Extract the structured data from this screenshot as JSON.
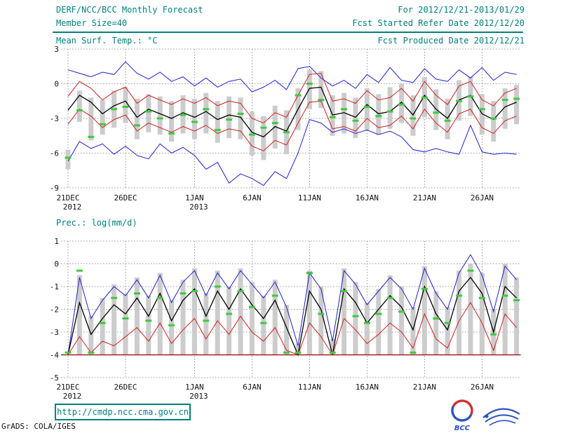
{
  "header": {
    "title": "DERF/NCC/BCC Monthly Forecast",
    "member_size": "Member Size=40",
    "valid_range": "For 2012/12/21-2013/01/29",
    "fcst_started": "Fcst Started Refer Date 2012/12/20",
    "fcst_produced": "Fcst Produced Date 2012/12/21"
  },
  "footer": {
    "url": "http://cmdp.ncc.cma.gov.cn",
    "credit": "GrADS: COLA/IGES",
    "bcc_logo_label": "BCC"
  },
  "colors": {
    "teal_text": "#008080",
    "line_blue": "#2020d0",
    "line_red": "#d02020",
    "line_black": "#000000",
    "obs_green": "#3fc93f",
    "bar_gray": "#cccccc",
    "dry_floor_red": "#990000"
  },
  "chart_data": [
    {
      "type": "line",
      "title": "Mean Surf. Temp.: °C",
      "xlabel": "",
      "ylabel": "°C",
      "ylim": [
        -9,
        3
      ],
      "yticks": [
        3,
        0,
        -3,
        -6,
        -9
      ],
      "grid": "dotted",
      "n_days": 40,
      "x_range": [
        "21DEC2012",
        "29JAN2013"
      ],
      "xtick_days": [
        0,
        5,
        11,
        16,
        21,
        26,
        31,
        36
      ],
      "xtick_labels": [
        "21DEC",
        "26DEC",
        "1JAN",
        "6JAN",
        "11JAN",
        "16JAN",
        "21JAN",
        "26JAN"
      ],
      "xtick_sublabels": [
        "2012",
        "",
        "2013",
        "",
        "",
        "",
        "",
        ""
      ],
      "series": [
        {
          "name": "ensemble-max",
          "color": "#2020d0",
          "width": 1,
          "values": [
            1.2,
            0.9,
            0.6,
            1.0,
            0.8,
            1.9,
            0.9,
            0.4,
            1.0,
            0.2,
            0.6,
            -0.2,
            0.5,
            -0.3,
            0.2,
            0.4,
            -0.7,
            -0.3,
            0.3,
            -0.5,
            1.3,
            1.5,
            0.5,
            -0.2,
            0.3,
            -0.4,
            0.8,
            0.1,
            1.4,
            0.3,
            0.1,
            1.3,
            0.4,
            0.2,
            1.2,
            0.5,
            1.4,
            0.3,
            1.0,
            0.8
          ]
        },
        {
          "name": "mean-plus-spread",
          "color": "#d02020",
          "width": 1,
          "values": [
            -1.1,
            0.2,
            -0.4,
            -1.4,
            -0.7,
            -0.3,
            -1.7,
            -1.0,
            -1.4,
            -1.8,
            -1.3,
            -1.7,
            -1.2,
            -1.9,
            -1.5,
            -1.7,
            -3.0,
            -3.4,
            -2.5,
            -2.9,
            -1.0,
            0.8,
            0.9,
            -1.5,
            -1.3,
            -1.7,
            -0.6,
            -1.4,
            -1.2,
            -0.4,
            -1.5,
            0.2,
            -1.0,
            -1.8,
            -0.2,
            0.2,
            -1.4,
            -1.9,
            -0.8,
            -0.4
          ]
        },
        {
          "name": "ensemble-mean",
          "color": "#000000",
          "width": 1.3,
          "values": [
            -2.3,
            -1.0,
            -1.6,
            -2.6,
            -1.9,
            -1.5,
            -2.9,
            -2.2,
            -2.6,
            -3.0,
            -2.5,
            -2.9,
            -2.4,
            -3.1,
            -2.7,
            -2.9,
            -4.2,
            -4.6,
            -3.7,
            -4.1,
            -2.2,
            -0.4,
            -0.3,
            -2.7,
            -2.5,
            -2.9,
            -1.8,
            -2.6,
            -2.4,
            -1.6,
            -2.7,
            -1.0,
            -2.2,
            -3.0,
            -1.4,
            -1.0,
            -2.6,
            -3.1,
            -2.0,
            -1.6
          ]
        },
        {
          "name": "mean-minus-spread",
          "color": "#d02020",
          "width": 1,
          "values": [
            -3.5,
            -2.2,
            -2.8,
            -3.8,
            -3.1,
            -2.7,
            -4.1,
            -3.4,
            -3.8,
            -4.2,
            -3.7,
            -4.1,
            -3.6,
            -4.3,
            -3.9,
            -4.1,
            -5.4,
            -5.8,
            -4.9,
            -5.3,
            -3.4,
            -1.6,
            -1.5,
            -3.9,
            -3.7,
            -4.1,
            -3.0,
            -3.8,
            -3.6,
            -2.8,
            -3.9,
            -2.2,
            -3.4,
            -4.2,
            -2.6,
            -2.2,
            -3.8,
            -4.3,
            -3.2,
            -2.8
          ]
        },
        {
          "name": "ensemble-min",
          "color": "#2020d0",
          "width": 1,
          "values": [
            -6.7,
            -5.0,
            -5.6,
            -5.2,
            -6.1,
            -5.4,
            -6.2,
            -6.5,
            -5.2,
            -6.0,
            -5.5,
            -6.2,
            -7.4,
            -6.8,
            -8.6,
            -7.8,
            -8.2,
            -8.8,
            -7.6,
            -8.2,
            -6.0,
            -3.1,
            -3.4,
            -4.2,
            -3.9,
            -4.3,
            -4.0,
            -4.4,
            -4.1,
            -4.6,
            -5.7,
            -5.9,
            -5.6,
            -5.9,
            -6.1,
            -3.6,
            -5.9,
            -6.1,
            -6.0,
            -6.1
          ]
        }
      ],
      "markers": {
        "name": "observation",
        "color": "#3fc93f",
        "values": [
          -6.4,
          -2.3,
          -4.6,
          -3.5,
          -2.2,
          -2.0,
          -3.6,
          -2.4,
          -3.0,
          -4.3,
          -2.7,
          -3.3,
          -2.2,
          -4.0,
          -3.1,
          -2.6,
          -4.4,
          -3.8,
          -3.4,
          -4.2,
          -1.0,
          0.0,
          -1.4,
          -2.9,
          -2.2,
          -3.2,
          -2.0,
          -2.8,
          -2.4,
          -1.8,
          -3.0,
          -1.2,
          -2.5,
          -3.2,
          -1.5,
          -1.1,
          -2.2,
          -3.0,
          -1.4,
          -1.3
        ]
      },
      "bars": {
        "name": "ensemble-spread",
        "color": "#cccccc",
        "low": [
          -7.4,
          -3.3,
          -4.9,
          -4.4,
          -3.8,
          -3.4,
          -4.8,
          -4.2,
          -4.4,
          -5.0,
          -4.3,
          -4.8,
          -4.3,
          -5.1,
          -4.7,
          -4.8,
          -6.2,
          -6.6,
          -5.6,
          -6.1,
          -4.0,
          -2.2,
          -2.1,
          -4.5,
          -4.3,
          -4.7,
          -4.0,
          -4.4,
          -3.9,
          -3.4,
          -4.5,
          -2.9,
          -4.0,
          -4.8,
          -3.2,
          -2.8,
          -4.4,
          -5.0,
          -3.9,
          -3.5
        ],
        "high": [
          -5.7,
          -0.6,
          -1.2,
          -1.4,
          -0.6,
          -0.3,
          -1.3,
          -0.9,
          -1.1,
          -1.5,
          -1.0,
          -1.3,
          -0.8,
          -1.5,
          -1.1,
          -1.2,
          -2.4,
          -2.8,
          -1.9,
          -2.3,
          -0.4,
          1.2,
          1.1,
          -1.0,
          -0.8,
          -1.2,
          -0.4,
          -0.9,
          -0.3,
          0.0,
          -1.0,
          0.6,
          -0.5,
          -1.3,
          0.3,
          0.6,
          -0.9,
          -1.5,
          -0.4,
          -0.1
        ]
      }
    },
    {
      "type": "line",
      "title": "Prec.: log(mm/d)",
      "xlabel": "",
      "ylabel": "log(mm/d)",
      "ylim": [
        -5,
        1
      ],
      "yticks": [
        1,
        0,
        -1,
        -2,
        -3,
        -4,
        -5
      ],
      "grid": "dotted",
      "n_days": 40,
      "x_range": [
        "21DEC2012",
        "29JAN2013"
      ],
      "xtick_days": [
        0,
        5,
        11,
        16,
        21,
        26,
        31,
        36
      ],
      "xtick_labels": [
        "21DEC",
        "26DEC",
        "1JAN",
        "6JAN",
        "11JAN",
        "16JAN",
        "21JAN",
        "26JAN"
      ],
      "xtick_sublabels": [
        "2012",
        "",
        "2013",
        "",
        "",
        "",
        "",
        ""
      ],
      "baseline": {
        "name": "dry-floor",
        "value": -4,
        "color": "#990000"
      },
      "series": [
        {
          "name": "ensemble-max",
          "color": "#2020d0",
          "width": 1,
          "values": [
            -4.0,
            -0.6,
            -2.4,
            -1.6,
            -1.0,
            -1.4,
            -0.7,
            -1.5,
            -0.5,
            -1.7,
            -0.8,
            -0.3,
            -1.4,
            -0.4,
            -1.1,
            -0.3,
            -0.9,
            -1.5,
            -0.8,
            -1.9,
            -3.6,
            -0.4,
            -1.1,
            -3.4,
            -0.3,
            -0.9,
            -1.8,
            -1.2,
            -0.6,
            -1.1,
            -2.0,
            -0.2,
            -1.3,
            -2.0,
            -0.4,
            0.4,
            -0.5,
            -2.1,
            -0.1,
            -0.7
          ]
        },
        {
          "name": "ensemble-mean",
          "color": "#000000",
          "width": 1.3,
          "values": [
            -4.0,
            -1.7,
            -3.1,
            -2.4,
            -1.8,
            -2.2,
            -1.5,
            -2.3,
            -1.3,
            -2.5,
            -1.6,
            -1.1,
            -2.3,
            -1.2,
            -2.0,
            -1.1,
            -1.8,
            -2.4,
            -1.6,
            -2.8,
            -4.0,
            -1.2,
            -2.0,
            -4.0,
            -1.1,
            -1.7,
            -2.6,
            -2.0,
            -1.4,
            -1.9,
            -2.9,
            -1.0,
            -2.2,
            -2.9,
            -1.2,
            -0.6,
            -1.3,
            -3.0,
            -1.0,
            -1.5
          ]
        },
        {
          "name": "ensemble-min",
          "color": "#d02020",
          "width": 1,
          "values": [
            -4.0,
            -3.2,
            -3.9,
            -3.4,
            -3.6,
            -3.2,
            -2.8,
            -3.4,
            -2.6,
            -3.5,
            -2.9,
            -2.4,
            -3.3,
            -2.5,
            -3.1,
            -2.3,
            -3.0,
            -3.4,
            -2.8,
            -3.8,
            -4.0,
            -2.6,
            -3.2,
            -4.0,
            -2.4,
            -2.9,
            -3.5,
            -3.1,
            -2.6,
            -3.0,
            -3.7,
            -2.2,
            -3.3,
            -3.7,
            -2.5,
            -1.7,
            -2.6,
            -3.8,
            -2.2,
            -2.8
          ]
        }
      ],
      "markers": {
        "name": "observation",
        "color": "#3fc93f",
        "values": [
          -3.9,
          -0.3,
          -3.9,
          -2.6,
          -1.5,
          -2.4,
          -1.3,
          -2.5,
          -1.5,
          -2.7,
          -1.3,
          -1.2,
          -2.5,
          -1.0,
          -2.2,
          -1.2,
          -1.9,
          -2.6,
          -1.4,
          -3.9,
          -3.9,
          -0.4,
          -2.2,
          -3.9,
          -1.2,
          -2.3,
          -2.6,
          -2.2,
          -1.5,
          -2.1,
          -3.9,
          -1.1,
          -2.4,
          -2.6,
          -1.4,
          -0.3,
          -1.5,
          -3.1,
          -1.4,
          -1.6
        ]
      },
      "bars": {
        "name": "ensemble-spread",
        "color": "#cccccc",
        "low": -4.0,
        "high": [
          -4.0,
          -0.5,
          -2.3,
          -1.5,
          -0.9,
          -1.3,
          -0.6,
          -1.4,
          -0.4,
          -1.6,
          -0.7,
          -0.2,
          -1.3,
          -0.3,
          -1.0,
          -0.2,
          -0.8,
          -1.4,
          -0.7,
          -1.8,
          -3.5,
          -0.3,
          -1.0,
          -3.3,
          -0.2,
          -0.8,
          -1.7,
          -1.1,
          -0.5,
          -1.0,
          -1.9,
          -0.1,
          -1.2,
          -1.9,
          -0.3,
          0.0,
          -0.4,
          -2.0,
          0.0,
          -0.6
        ]
      }
    }
  ]
}
